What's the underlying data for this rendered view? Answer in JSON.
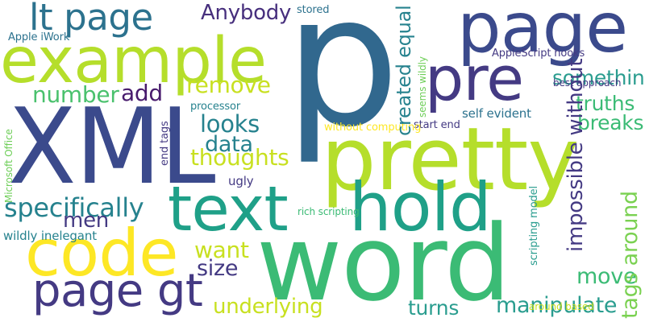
{
  "background": "#ffffff",
  "colors": {
    "navy": "#3b4a8c",
    "indigo": "#443a83",
    "purple": "#472f7d",
    "dark_purple": "#481b6d",
    "steel_blue": "#31688e",
    "blue_teal": "#2c728e",
    "teal": "#26828e",
    "teal_green": "#1fa088",
    "sea_green": "#2a9d8f",
    "green": "#3bbb75",
    "mid_green": "#4ac16d",
    "light_green": "#6ece58",
    "bright_green": "#7ad151",
    "lime": "#b5de2b",
    "yellow_green": "#c8e020",
    "yellow": "#fde725"
  },
  "words": [
    {
      "text": "p",
      "color": "#31688e"
    },
    {
      "text": "word",
      "color": "#3bbb75"
    },
    {
      "text": "XML",
      "color": "#3b4a8c"
    },
    {
      "text": "pretty",
      "color": "#b5de2b"
    },
    {
      "text": "example",
      "color": "#b5de2b"
    },
    {
      "text": "page",
      "color": "#3b4a8c"
    },
    {
      "text": "text",
      "color": "#1fa088"
    },
    {
      "text": "hold",
      "color": "#1fa088"
    },
    {
      "text": "code",
      "color": "#fde725"
    },
    {
      "text": "pre",
      "color": "#443a83"
    },
    {
      "text": "page gt",
      "color": "#443a83"
    },
    {
      "text": "lt page",
      "color": "#2c728e"
    },
    {
      "text": "specifically",
      "color": "#26828e"
    },
    {
      "text": "thoughts",
      "color": "#c8e020"
    },
    {
      "text": "remove",
      "color": "#c8e020"
    },
    {
      "text": "looks",
      "color": "#26828e"
    },
    {
      "text": "data",
      "color": "#26828e"
    },
    {
      "text": "number",
      "color": "#4ac16d"
    },
    {
      "text": "add",
      "color": "#481b6d"
    },
    {
      "text": "men",
      "color": "#443a83"
    },
    {
      "text": "want",
      "color": "#c8e020"
    },
    {
      "text": "size",
      "color": "#443a83"
    },
    {
      "text": "underlying",
      "color": "#c8e020"
    },
    {
      "text": "Anybody",
      "color": "#472f7d"
    },
    {
      "text": "something",
      "color": "#2a9d8f"
    },
    {
      "text": "truths",
      "color": "#3bbb75"
    },
    {
      "text": "breaks",
      "color": "#3bbb75"
    },
    {
      "text": "move",
      "color": "#3bbb75"
    },
    {
      "text": "manipulate",
      "color": "#2a9d8f"
    },
    {
      "text": "turns",
      "color": "#2a9d8f"
    },
    {
      "text": "ugly",
      "color": "#443a83"
    },
    {
      "text": "processor",
      "color": "#26828e"
    },
    {
      "text": "stored",
      "color": "#2c728e"
    },
    {
      "text": "Apple iWork",
      "color": "#2c728e"
    },
    {
      "text": "AppleScript hooks",
      "color": "#443a83"
    },
    {
      "text": "best approach",
      "color": "#443a83"
    },
    {
      "text": "self evident",
      "color": "#2c728e"
    },
    {
      "text": "start end",
      "color": "#443a83"
    },
    {
      "text": "without computing",
      "color": "#fde725"
    },
    {
      "text": "wildly inelegant",
      "color": "#26828e"
    },
    {
      "text": "rich scripting",
      "color": "#3bbb75"
    },
    {
      "text": "created equal",
      "color": "#26828e"
    },
    {
      "text": "tags around",
      "color": "#7ad151"
    },
    {
      "text": "impossible without",
      "color": "#443a83"
    },
    {
      "text": "seems wildly",
      "color": "#6ece58"
    },
    {
      "text": "Microsoft Office",
      "color": "#6ece58"
    },
    {
      "text": "end tags",
      "color": "#443a83"
    },
    {
      "text": "scripting model",
      "color": "#2a9d8f"
    },
    {
      "text": "around based",
      "color": "#c8e020"
    }
  ]
}
